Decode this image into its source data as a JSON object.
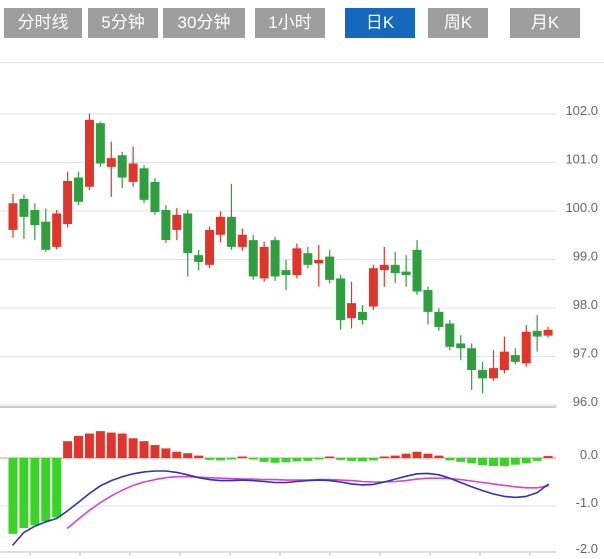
{
  "tabbar": {
    "tabs": [
      {
        "label": "分时线",
        "selected": false
      },
      {
        "label": "5分钟",
        "selected": false
      },
      {
        "label": "30分钟",
        "selected": false
      },
      {
        "label": "1小时",
        "selected": false
      },
      {
        "label": "日K",
        "selected": true
      },
      {
        "label": "周K",
        "selected": false
      },
      {
        "label": "月K",
        "selected": false
      }
    ]
  },
  "colors": {
    "up": "#e0352b",
    "down": "#2f9e3e",
    "macd_up": "#e0352b",
    "macd_down": "#3bd327",
    "dif_line": "#2a35b5",
    "dea_line": "#d943cf",
    "tab_bg": "#9e9e9e",
    "tab_selected_bg": "#1568bd",
    "tab_text": "#ffffff",
    "grid": "#e2e2e2",
    "separator": "#cccccc",
    "axis_line": "#bbbbbb",
    "zero_line": "#ef8a80",
    "axis_text": "#666666"
  },
  "chart_data": {
    "type": "candlestick+macd",
    "title": "",
    "legend_position": "none",
    "grid": true,
    "price_axis": {
      "side": "right",
      "ticks": [
        "102.0",
        "101.0",
        "100.0",
        "99.0",
        "98.0",
        "97.0",
        "96.0"
      ],
      "range": [
        95.9,
        103.1
      ]
    },
    "macd_axis": {
      "side": "right",
      "ticks": [
        "0.0",
        "-1.0",
        "-2.0"
      ],
      "range": [
        -2.0,
        0.8
      ]
    },
    "x_axis": {
      "labels": [],
      "tick_positions": [
        30,
        80,
        130,
        180,
        230,
        280,
        330,
        380,
        430,
        480,
        530
      ]
    },
    "candles_format": "[open, high, low, close]",
    "candles": [
      [
        99.61,
        100.35,
        99.45,
        100.16
      ],
      [
        100.25,
        100.34,
        99.42,
        99.88
      ],
      [
        100.02,
        100.16,
        99.4,
        99.71
      ],
      [
        99.78,
        100.05,
        99.16,
        99.2
      ],
      [
        99.26,
        100.02,
        99.21,
        99.95
      ],
      [
        99.73,
        100.81,
        99.66,
        100.62
      ],
      [
        100.69,
        100.81,
        100.12,
        100.19
      ],
      [
        100.5,
        102.01,
        100.43,
        101.88
      ],
      [
        101.81,
        101.84,
        100.91,
        100.98
      ],
      [
        100.91,
        101.43,
        100.29,
        101.09
      ],
      [
        101.15,
        101.22,
        100.47,
        100.69
      ],
      [
        100.6,
        101.33,
        100.5,
        100.98
      ],
      [
        100.88,
        100.95,
        100.16,
        100.23
      ],
      [
        100.6,
        100.68,
        99.92,
        99.98
      ],
      [
        100.02,
        100.12,
        99.34,
        99.4
      ],
      [
        99.61,
        100.06,
        99.4,
        99.92
      ],
      [
        99.95,
        100.02,
        98.65,
        99.13
      ],
      [
        99.09,
        99.2,
        98.78,
        98.95
      ],
      [
        98.89,
        99.68,
        98.82,
        99.61
      ],
      [
        99.51,
        99.99,
        99.35,
        99.88
      ],
      [
        99.88,
        100.56,
        99.2,
        99.26
      ],
      [
        99.26,
        99.64,
        99.18,
        99.51
      ],
      [
        99.4,
        99.51,
        98.58,
        98.65
      ],
      [
        98.61,
        99.37,
        98.54,
        99.26
      ],
      [
        99.4,
        99.47,
        98.56,
        98.65
      ],
      [
        98.78,
        98.99,
        98.37,
        98.68
      ],
      [
        98.68,
        99.33,
        98.61,
        99.23
      ],
      [
        99.13,
        99.26,
        98.82,
        98.89
      ],
      [
        98.92,
        99.3,
        98.44,
        98.99
      ],
      [
        99.06,
        99.2,
        98.51,
        98.58
      ],
      [
        98.61,
        98.68,
        97.55,
        97.75
      ],
      [
        97.79,
        98.54,
        97.58,
        98.1
      ],
      [
        97.92,
        98.06,
        97.66,
        97.75
      ],
      [
        98.03,
        98.89,
        97.96,
        98.82
      ],
      [
        98.78,
        99.26,
        98.44,
        98.89
      ],
      [
        98.89,
        99.16,
        98.51,
        98.72
      ],
      [
        98.75,
        99.09,
        98.44,
        98.68
      ],
      [
        99.2,
        99.4,
        98.27,
        98.34
      ],
      [
        98.37,
        98.44,
        97.66,
        97.92
      ],
      [
        97.92,
        97.99,
        97.53,
        97.61
      ],
      [
        97.68,
        97.75,
        97.13,
        97.2
      ],
      [
        97.27,
        97.44,
        96.93,
        97.17
      ],
      [
        97.17,
        97.27,
        96.31,
        96.72
      ],
      [
        96.72,
        96.89,
        96.24,
        96.55
      ],
      [
        96.55,
        97.13,
        96.5,
        96.76
      ],
      [
        96.72,
        97.41,
        96.65,
        97.1
      ],
      [
        97.03,
        97.17,
        96.84,
        96.89
      ],
      [
        96.86,
        97.65,
        96.79,
        97.51
      ],
      [
        97.53,
        97.86,
        97.1,
        97.41
      ],
      [
        97.43,
        97.61,
        97.39,
        97.55
      ]
    ],
    "macd": {
      "histogram": [
        -1.58,
        -1.46,
        -1.4,
        -1.32,
        -1.24,
        0.35,
        0.46,
        0.51,
        0.56,
        0.53,
        0.51,
        0.41,
        0.35,
        0.27,
        0.2,
        0.13,
        0.1,
        0.05,
        -0.04,
        -0.05,
        -0.02,
        0.03,
        -0.03,
        -0.08,
        -0.1,
        -0.09,
        -0.07,
        -0.06,
        -0.02,
        0.03,
        -0.04,
        -0.06,
        -0.07,
        -0.05,
        0.01,
        0.05,
        0.09,
        0.13,
        0.09,
        0.05,
        -0.05,
        -0.08,
        -0.11,
        -0.15,
        -0.17,
        -0.17,
        -0.14,
        -0.11,
        -0.06,
        0.04
      ],
      "dif": [
        -1.81,
        -1.55,
        -1.42,
        -1.33,
        -1.26,
        -1.1,
        -0.92,
        -0.74,
        -0.58,
        -0.47,
        -0.39,
        -0.33,
        -0.29,
        -0.27,
        -0.27,
        -0.3,
        -0.35,
        -0.41,
        -0.45,
        -0.47,
        -0.47,
        -0.46,
        -0.47,
        -0.49,
        -0.51,
        -0.51,
        -0.49,
        -0.47,
        -0.46,
        -0.47,
        -0.5,
        -0.54,
        -0.56,
        -0.55,
        -0.5,
        -0.44,
        -0.38,
        -0.33,
        -0.32,
        -0.35,
        -0.42,
        -0.51,
        -0.6,
        -0.68,
        -0.75,
        -0.8,
        -0.82,
        -0.8,
        -0.72,
        -0.55
      ],
      "dea": [
        null,
        null,
        null,
        null,
        null,
        -1.46,
        -1.27,
        -1.09,
        -0.93,
        -0.79,
        -0.67,
        -0.57,
        -0.5,
        -0.45,
        -0.41,
        -0.39,
        -0.39,
        -0.4,
        -0.41,
        -0.42,
        -0.43,
        -0.44,
        -0.44,
        -0.45,
        -0.45,
        -0.46,
        -0.46,
        -0.46,
        -0.45,
        -0.45,
        -0.46,
        -0.47,
        -0.49,
        -0.5,
        -0.5,
        -0.49,
        -0.47,
        -0.44,
        -0.42,
        -0.42,
        -0.43,
        -0.45,
        -0.48,
        -0.51,
        -0.54,
        -0.57,
        -0.6,
        -0.62,
        -0.62,
        -0.58
      ]
    }
  }
}
